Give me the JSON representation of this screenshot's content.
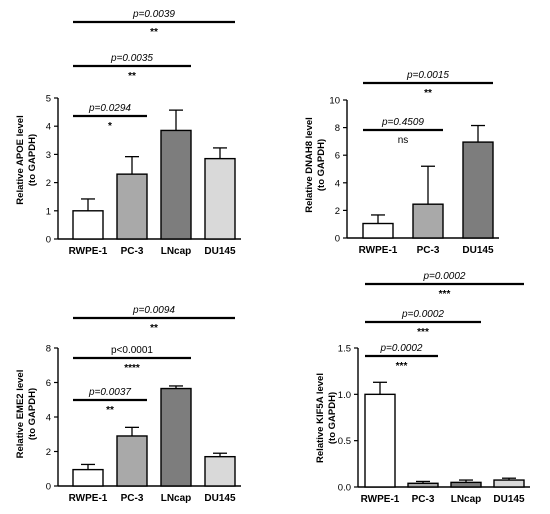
{
  "colors": {
    "axis": "#000000",
    "error": "#000000",
    "bracket": "#000000"
  },
  "chart_data": [
    {
      "type": "bar",
      "ylabel": "Relative APOE level (to GAPDH)",
      "ylim": [
        0,
        5
      ],
      "yticks": [
        "0",
        "1",
        "2",
        "3",
        "4",
        "5"
      ],
      "categories": [
        "RWPE-1",
        "PC-3",
        "LNcap",
        "DU145"
      ],
      "values": [
        1.0,
        2.3,
        3.85,
        2.85
      ],
      "errors": [
        0.42,
        0.62,
        0.72,
        0.38
      ],
      "bar_colors": [
        "#ffffff",
        "#a9a9a9",
        "#7d7d7d",
        "#d9d9d9"
      ],
      "comparisons": [
        {
          "from": 0,
          "to": 1,
          "p": "p=0.0294",
          "stars": "*",
          "italic": true
        },
        {
          "from": 0,
          "to": 2,
          "p": "p=0.0035",
          "stars": "**",
          "italic": true
        },
        {
          "from": 0,
          "to": 3,
          "p": "p=0.0039",
          "stars": "**",
          "italic": true
        }
      ]
    },
    {
      "type": "bar",
      "ylabel": "Relative DNAH8 level (to GAPDH)",
      "ylim": [
        0,
        10
      ],
      "yticks": [
        "0",
        "2",
        "4",
        "6",
        "8",
        "10"
      ],
      "categories": [
        "RWPE-1",
        "PC-3",
        "DU145"
      ],
      "values": [
        1.05,
        2.45,
        6.95
      ],
      "errors": [
        0.62,
        2.75,
        1.2
      ],
      "bar_colors": [
        "#ffffff",
        "#a9a9a9",
        "#7d7d7d"
      ],
      "comparisons": [
        {
          "from": 0,
          "to": 1,
          "p": "p=0.4509",
          "stars": "ns",
          "italic": true
        },
        {
          "from": 0,
          "to": 2,
          "p": "p=0.0015",
          "stars": "**",
          "italic": true
        }
      ]
    },
    {
      "type": "bar",
      "ylabel": "Relative EME2 level (to GAPDH)",
      "ylim": [
        0,
        8
      ],
      "yticks": [
        "0",
        "2",
        "4",
        "6",
        "8"
      ],
      "categories": [
        "RWPE-1",
        "PC-3",
        "LNcap",
        "DU145"
      ],
      "values": [
        0.95,
        2.9,
        5.65,
        1.7
      ],
      "errors": [
        0.3,
        0.5,
        0.15,
        0.2
      ],
      "bar_colors": [
        "#ffffff",
        "#a9a9a9",
        "#7d7d7d",
        "#d9d9d9"
      ],
      "comparisons": [
        {
          "from": 0,
          "to": 1,
          "p": "p=0.0037",
          "stars": "**",
          "italic": true
        },
        {
          "from": 0,
          "to": 2,
          "p": "p<0.0001",
          "stars": "****",
          "italic": false
        },
        {
          "from": 0,
          "to": 3,
          "p": "p=0.0094",
          "stars": "**",
          "italic": true
        }
      ]
    },
    {
      "type": "bar",
      "ylabel": "Relative KIF5A level (to GAPDH)",
      "ylim": [
        0,
        1.5
      ],
      "yticks": [
        "0.0",
        "0.5",
        "1.0",
        "1.5"
      ],
      "categories": [
        "RWPE-1",
        "PC-3",
        "LNcap",
        "DU145"
      ],
      "values": [
        1.0,
        0.04,
        0.05,
        0.075
      ],
      "errors": [
        0.13,
        0.02,
        0.025,
        0.02
      ],
      "bar_colors": [
        "#ffffff",
        "#a9a9a9",
        "#7d7d7d",
        "#d9d9d9"
      ],
      "comparisons": [
        {
          "from": 0,
          "to": 1,
          "p": "p=0.0002",
          "stars": "***",
          "italic": true
        },
        {
          "from": 0,
          "to": 2,
          "p": "p=0.0002",
          "stars": "***",
          "italic": true
        },
        {
          "from": 0,
          "to": 3,
          "p": "p=0.0002",
          "stars": "***",
          "italic": true
        }
      ]
    }
  ]
}
